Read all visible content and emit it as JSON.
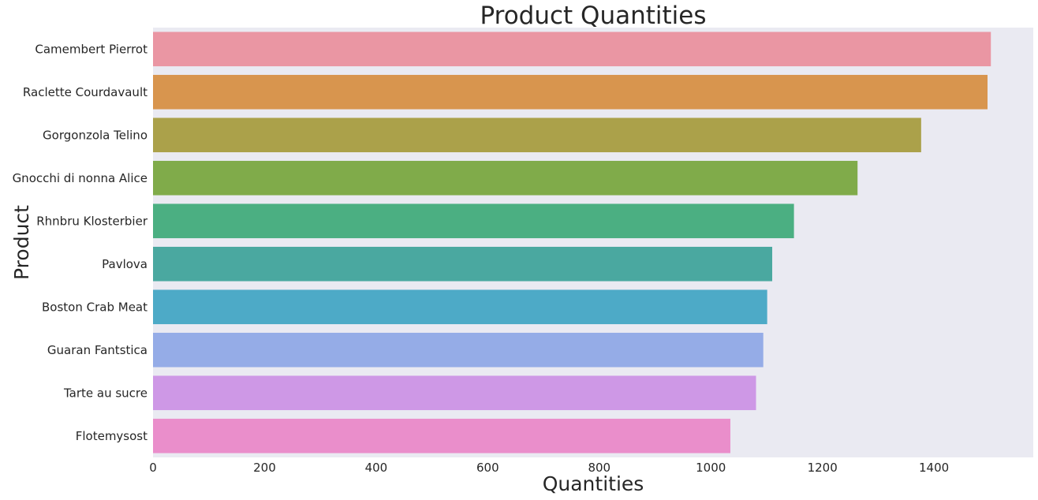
{
  "chart_data": {
    "type": "bar",
    "orientation": "horizontal",
    "title": "Product Quantities",
    "xlabel": "Quantities",
    "ylabel": "Product",
    "categories": [
      "Camembert Pierrot",
      "Raclette Courdavault",
      "Gorgonzola Telino",
      "Gnocchi di nonna Alice",
      "Rhnbru Klosterbier",
      "Pavlova",
      "Boston Crab Meat",
      "Guaran Fantstica",
      "Tarte au sucre",
      "Flotemysost"
    ],
    "values": [
      1502,
      1496,
      1377,
      1263,
      1149,
      1110,
      1101,
      1094,
      1081,
      1035
    ],
    "xlim": [
      0,
      1578
    ],
    "xticks": [
      0,
      200,
      400,
      600,
      800,
      1000,
      1200,
      1400
    ],
    "grid": false,
    "background": "#eaeaf2",
    "colors": [
      "#ea96a3",
      "#d8954e",
      "#aba14a",
      "#80ab4a",
      "#4baf82",
      "#4aa8a0",
      "#4daac7",
      "#95acE7",
      "#ce98e6",
      "#ea8ecb"
    ]
  }
}
